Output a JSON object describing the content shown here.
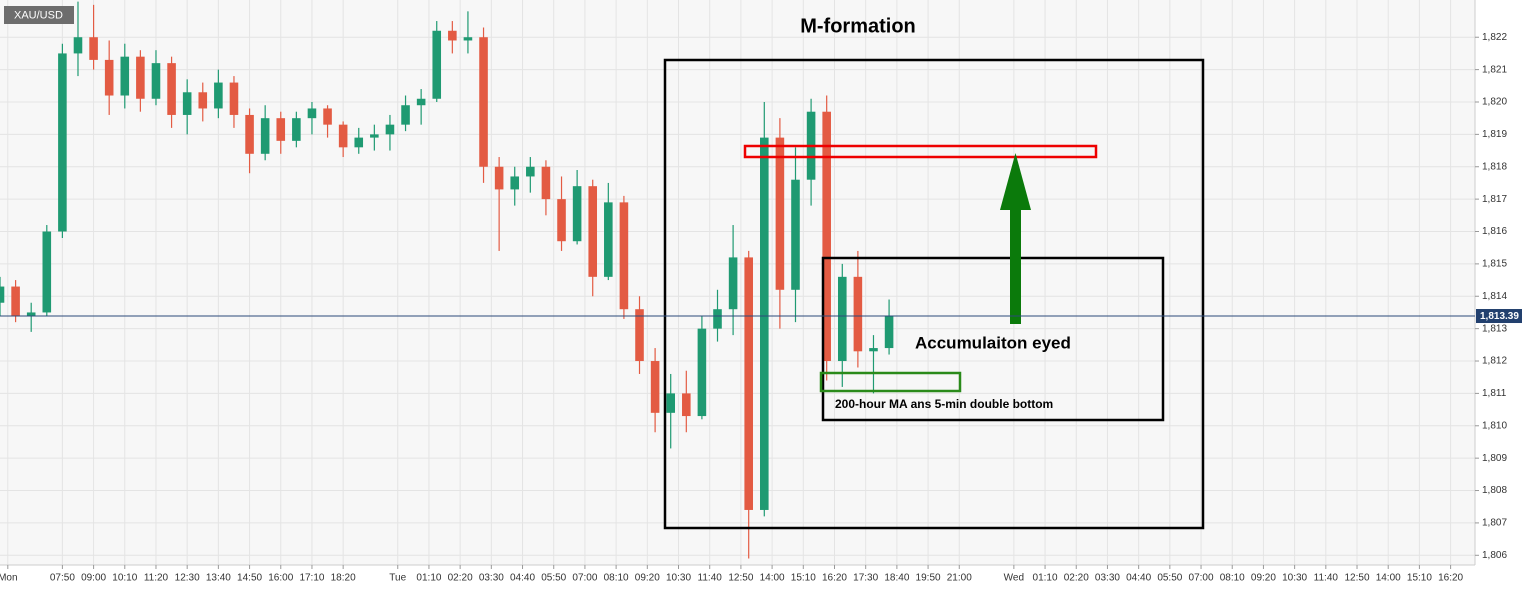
{
  "chart_data": {
    "type": "candlestick",
    "symbol": "XAU/USD",
    "title": "M-formation",
    "annotations": [
      "Accumulaiton eyed",
      "200-hour MA ans 5-min double bottom"
    ],
    "up_color": "#1f9a72",
    "down_color": "#e35b43",
    "grid": true,
    "x": [
      0,
      1,
      2,
      3,
      4,
      5,
      6,
      7,
      8,
      9,
      10,
      11,
      12,
      13,
      14,
      15,
      16,
      17,
      18,
      19,
      20,
      21,
      22,
      23,
      24,
      25,
      26,
      27,
      28,
      29,
      30,
      31,
      32,
      33,
      34,
      35,
      36,
      37,
      38,
      39,
      40,
      41,
      42,
      43,
      44,
      45,
      46,
      47,
      48,
      49,
      50,
      51,
      52,
      53,
      54,
      55,
      56,
      57
    ],
    "open": [
      1813.8,
      1814.3,
      1813.4,
      1813.5,
      1816.0,
      1821.5,
      1822.0,
      1821.3,
      1820.2,
      1821.4,
      1820.1,
      1821.2,
      1819.6,
      1820.3,
      1819.8,
      1820.6,
      1819.6,
      1818.4,
      1819.5,
      1818.8,
      1819.5,
      1819.8,
      1819.3,
      1818.6,
      1818.9,
      1819.0,
      1819.3,
      1819.9,
      1820.1,
      1822.2,
      1821.9,
      1822.0,
      1818.0,
      1817.3,
      1817.7,
      1818.0,
      1817.0,
      1815.7,
      1817.4,
      1814.6,
      1816.9,
      1813.6,
      1812.0,
      1810.4,
      1811.0,
      1810.3,
      1813.0,
      1813.6,
      1815.2,
      1807.4,
      1818.9,
      1814.2,
      1817.6,
      1819.7,
      1812.0,
      1814.6,
      1812.3,
      1812.4
    ],
    "high": [
      1814.6,
      1814.5,
      1813.8,
      1816.2,
      1821.8,
      1823.1,
      1823.0,
      1821.9,
      1821.8,
      1821.6,
      1821.6,
      1821.4,
      1820.7,
      1820.6,
      1821.0,
      1820.8,
      1819.8,
      1819.9,
      1819.7,
      1819.7,
      1820.0,
      1819.9,
      1819.4,
      1819.2,
      1819.3,
      1819.6,
      1820.2,
      1820.4,
      1822.5,
      1822.5,
      1822.8,
      1822.3,
      1818.3,
      1818.0,
      1818.3,
      1818.2,
      1817.7,
      1817.9,
      1817.6,
      1817.5,
      1817.1,
      1814.0,
      1812.4,
      1811.6,
      1811.7,
      1813.4,
      1814.2,
      1816.2,
      1815.4,
      1820.0,
      1819.5,
      1818.6,
      1820.1,
      1820.2,
      1815.0,
      1815.4,
      1812.8,
      1813.9
    ],
    "low": [
      1813.4,
      1813.2,
      1812.9,
      1813.4,
      1815.8,
      1820.8,
      1821.0,
      1819.6,
      1819.8,
      1819.7,
      1819.9,
      1819.2,
      1819.0,
      1819.4,
      1819.5,
      1819.2,
      1817.8,
      1818.2,
      1818.4,
      1818.6,
      1819.0,
      1818.9,
      1818.3,
      1818.4,
      1818.5,
      1818.5,
      1819.1,
      1819.3,
      1820.0,
      1821.5,
      1821.5,
      1817.5,
      1815.4,
      1816.8,
      1817.2,
      1816.5,
      1815.4,
      1815.6,
      1814.0,
      1814.5,
      1813.3,
      1811.6,
      1809.8,
      1809.3,
      1809.8,
      1810.2,
      1812.6,
      1812.8,
      1805.9,
      1807.2,
      1813.0,
      1813.2,
      1816.8,
      1811.4,
      1811.2,
      1811.8,
      1811.0,
      1812.2
    ],
    "close": [
      1814.3,
      1813.4,
      1813.5,
      1816.0,
      1821.5,
      1822.0,
      1821.3,
      1820.2,
      1821.4,
      1820.1,
      1821.2,
      1819.6,
      1820.3,
      1819.8,
      1820.6,
      1819.6,
      1818.4,
      1819.5,
      1818.8,
      1819.5,
      1819.8,
      1819.3,
      1818.6,
      1818.9,
      1819.0,
      1819.3,
      1819.9,
      1820.1,
      1822.2,
      1821.9,
      1822.0,
      1818.0,
      1817.3,
      1817.7,
      1818.0,
      1817.0,
      1815.7,
      1817.4,
      1814.6,
      1816.9,
      1813.6,
      1812.0,
      1810.4,
      1811.0,
      1810.3,
      1813.0,
      1813.6,
      1815.2,
      1807.4,
      1818.9,
      1814.2,
      1817.6,
      1819.7,
      1812.0,
      1814.6,
      1812.3,
      1812.4,
      1813.4
    ],
    "last_price": {
      "value": 1813.39,
      "label": "1,813.39"
    },
    "xlim": [
      0,
      94.5
    ],
    "xticks": [
      {
        "value": 0.5,
        "label": "Mon"
      },
      {
        "value": 4,
        "label": "07:50"
      },
      {
        "value": 6,
        "label": "09:00"
      },
      {
        "value": 8,
        "label": "10:10"
      },
      {
        "value": 10,
        "label": "11:20"
      },
      {
        "value": 12,
        "label": "12:30"
      },
      {
        "value": 14,
        "label": "13:40"
      },
      {
        "value": 16,
        "label": "14:50"
      },
      {
        "value": 18,
        "label": "16:00"
      },
      {
        "value": 20,
        "label": "17:10"
      },
      {
        "value": 22,
        "label": "18:20"
      },
      {
        "value": 25.5,
        "label": "Tue"
      },
      {
        "value": 27.5,
        "label": "01:10"
      },
      {
        "value": 29.5,
        "label": "02:20"
      },
      {
        "value": 31.5,
        "label": "03:30"
      },
      {
        "value": 33.5,
        "label": "04:40"
      },
      {
        "value": 35.5,
        "label": "05:50"
      },
      {
        "value": 37.5,
        "label": "07:00"
      },
      {
        "value": 39.5,
        "label": "08:10"
      },
      {
        "value": 41.5,
        "label": "09:20"
      },
      {
        "value": 43.5,
        "label": "10:30"
      },
      {
        "value": 45.5,
        "label": "11:40"
      },
      {
        "value": 47.5,
        "label": "12:50"
      },
      {
        "value": 49.5,
        "label": "14:00"
      },
      {
        "value": 51.5,
        "label": "15:10"
      },
      {
        "value": 53.5,
        "label": "16:20"
      },
      {
        "value": 55.5,
        "label": "17:30"
      },
      {
        "value": 57.5,
        "label": "18:40"
      },
      {
        "value": 59.5,
        "label": "19:50"
      },
      {
        "value": 61.5,
        "label": "21:00"
      },
      {
        "value": 65,
        "label": "Wed"
      },
      {
        "value": 67,
        "label": "01:10"
      },
      {
        "value": 69,
        "label": "02:20"
      },
      {
        "value": 71,
        "label": "03:30"
      },
      {
        "value": 73,
        "label": "04:40"
      },
      {
        "value": 75,
        "label": "05:50"
      },
      {
        "value": 77,
        "label": "07:00"
      },
      {
        "value": 79,
        "label": "08:10"
      },
      {
        "value": 81,
        "label": "09:20"
      },
      {
        "value": 83,
        "label": "10:30"
      },
      {
        "value": 85,
        "label": "11:40"
      },
      {
        "value": 87,
        "label": "12:50"
      },
      {
        "value": 89,
        "label": "14:00"
      },
      {
        "value": 91,
        "label": "15:10"
      },
      {
        "value": 93,
        "label": "16:20"
      }
    ],
    "ylim": [
      1805.7,
      1823.15
    ],
    "yticks": [
      {
        "value": 1806,
        "label": "1,806"
      },
      {
        "value": 1807,
        "label": "1,807"
      },
      {
        "value": 1808,
        "label": "1,808"
      },
      {
        "value": 1809,
        "label": "1,809"
      },
      {
        "value": 1810,
        "label": "1,810"
      },
      {
        "value": 1811,
        "label": "1,811"
      },
      {
        "value": 1812,
        "label": "1,812"
      },
      {
        "value": 1813,
        "label": "1,813"
      },
      {
        "value": 1814,
        "label": "1,814"
      },
      {
        "value": 1815,
        "label": "1,815"
      },
      {
        "value": 1816,
        "label": "1,816"
      },
      {
        "value": 1817,
        "label": "1,817"
      },
      {
        "value": 1818,
        "label": "1,818"
      },
      {
        "value": 1819,
        "label": "1,819"
      },
      {
        "value": 1820,
        "label": "1,820"
      },
      {
        "value": 1821,
        "label": "1,821"
      },
      {
        "value": 1822,
        "label": "1,822"
      }
    ]
  }
}
